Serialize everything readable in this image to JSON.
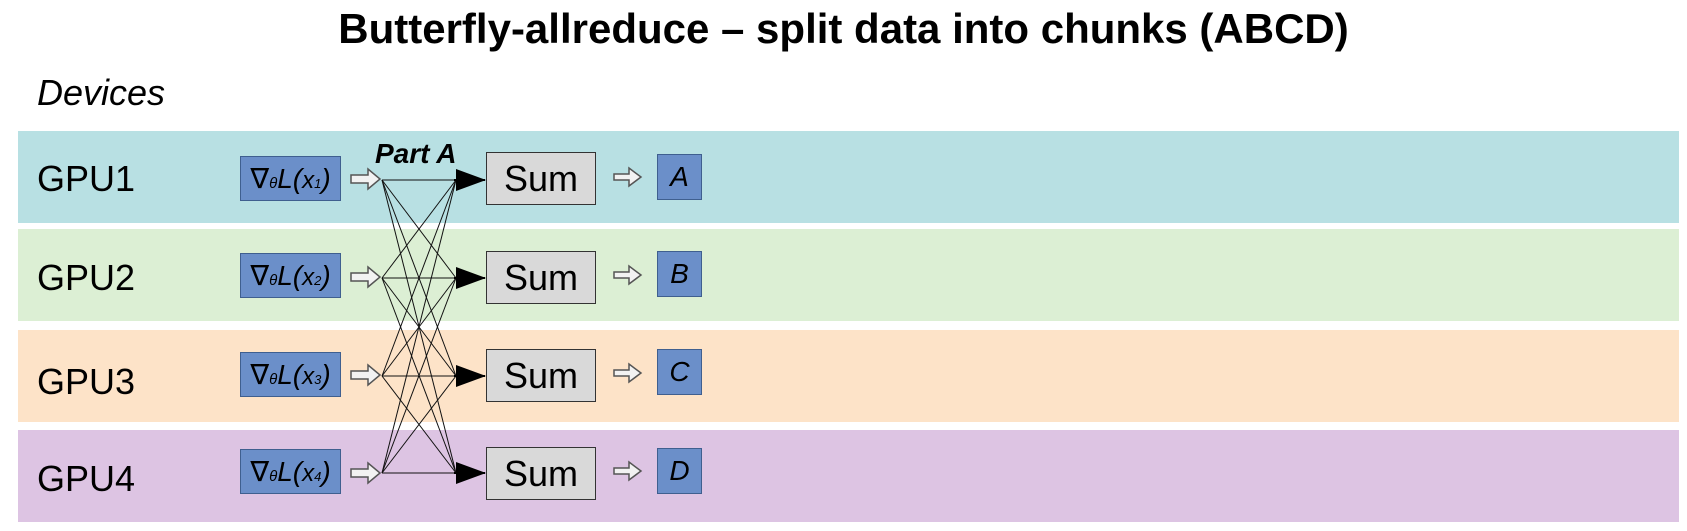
{
  "title": "Butterfly-allreduce – split data into chunks (ABCD)",
  "devices_label": "Devices",
  "part_label": "Part A",
  "colors": {
    "band_1": "#b8e0e3",
    "band_2": "#dcefd4",
    "band_3": "#fde3c8",
    "band_4": "#ddc4e3",
    "box_fill": "#6b8fc9",
    "sum_fill": "#d9d9d9"
  },
  "rows": [
    {
      "gpu": "GPU1",
      "grad_sub": "1",
      "sum": "Sum",
      "chunk": "A"
    },
    {
      "gpu": "GPU2",
      "grad_sub": "2",
      "sum": "Sum",
      "chunk": "B"
    },
    {
      "gpu": "GPU3",
      "grad_sub": "3",
      "sum": "Sum",
      "chunk": "C"
    },
    {
      "gpu": "GPU4",
      "grad_sub": "4",
      "sum": "Sum",
      "chunk": "D"
    }
  ],
  "gradient": {
    "nabla": "∇",
    "theta": "θ",
    "fn": "L(",
    "x": "x",
    "close": ")"
  },
  "icons": {
    "forward_arrow": "hollow-right-arrow-icon",
    "connection": "arrow-icon"
  }
}
